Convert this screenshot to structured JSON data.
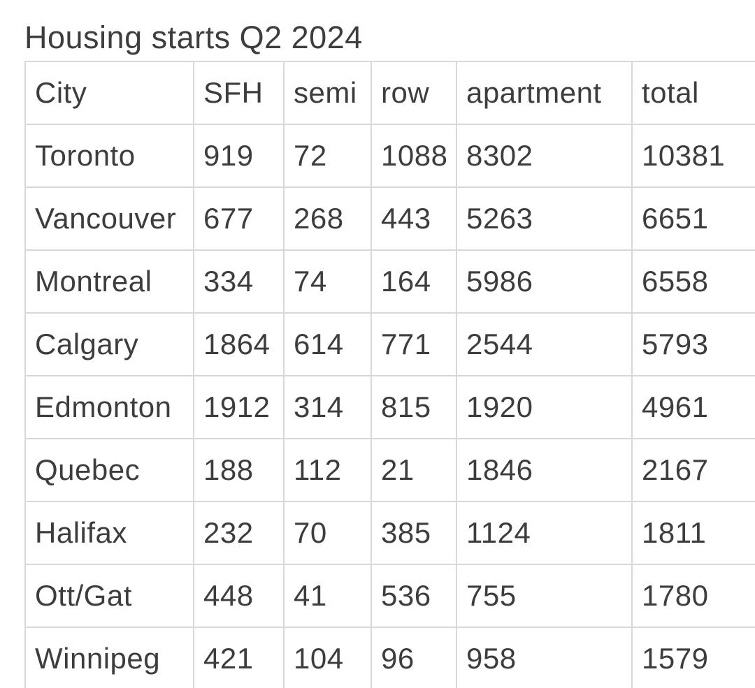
{
  "page": {
    "title": "Housing starts Q2 2024"
  },
  "table": {
    "columns": [
      "City",
      "SFH",
      "semi",
      "row",
      "apartment",
      "total"
    ],
    "rows": [
      [
        "Toronto",
        "919",
        "72",
        "1088",
        "8302",
        "10381"
      ],
      [
        "Vancouver",
        "677",
        "268",
        "443",
        "5263",
        "6651"
      ],
      [
        "Montreal",
        "334",
        "74",
        "164",
        "5986",
        "6558"
      ],
      [
        "Calgary",
        "1864",
        "614",
        "771",
        "2544",
        "5793"
      ],
      [
        "Edmonton",
        "1912",
        "314",
        "815",
        "1920",
        "4961"
      ],
      [
        "Quebec",
        "188",
        "112",
        "21",
        "1846",
        "2167"
      ],
      [
        "Halifax",
        "232",
        "70",
        "385",
        "1124",
        "1811"
      ],
      [
        "Ott/Gat",
        "448",
        "41",
        "536",
        "755",
        "1780"
      ],
      [
        "Winnipeg",
        "421",
        "104",
        "96",
        "958",
        "1579"
      ]
    ]
  },
  "colors": {
    "text": "#3d3d3d",
    "border": "#d8d8d8",
    "background": "#ffffff"
  },
  "chart_data": {
    "type": "table",
    "title": "Housing starts Q2 2024",
    "columns": [
      "City",
      "SFH",
      "semi",
      "row",
      "apartment",
      "total"
    ],
    "rows": [
      {
        "City": "Toronto",
        "SFH": 919,
        "semi": 72,
        "row": 1088,
        "apartment": 8302,
        "total": 10381
      },
      {
        "City": "Vancouver",
        "SFH": 677,
        "semi": 268,
        "row": 443,
        "apartment": 5263,
        "total": 6651
      },
      {
        "City": "Montreal",
        "SFH": 334,
        "semi": 74,
        "row": 164,
        "apartment": 5986,
        "total": 6558
      },
      {
        "City": "Calgary",
        "SFH": 1864,
        "semi": 614,
        "row": 771,
        "apartment": 2544,
        "total": 5793
      },
      {
        "City": "Edmonton",
        "SFH": 1912,
        "semi": 314,
        "row": 815,
        "apartment": 1920,
        "total": 4961
      },
      {
        "City": "Quebec",
        "SFH": 188,
        "semi": 112,
        "row": 21,
        "apartment": 1846,
        "total": 2167
      },
      {
        "City": "Halifax",
        "SFH": 232,
        "semi": 70,
        "row": 385,
        "apartment": 1124,
        "total": 1811
      },
      {
        "City": "Ott/Gat",
        "SFH": 448,
        "semi": 41,
        "row": 536,
        "apartment": 755,
        "total": 1780
      },
      {
        "City": "Winnipeg",
        "SFH": 421,
        "semi": 104,
        "row": 96,
        "apartment": 958,
        "total": 1579
      }
    ]
  }
}
